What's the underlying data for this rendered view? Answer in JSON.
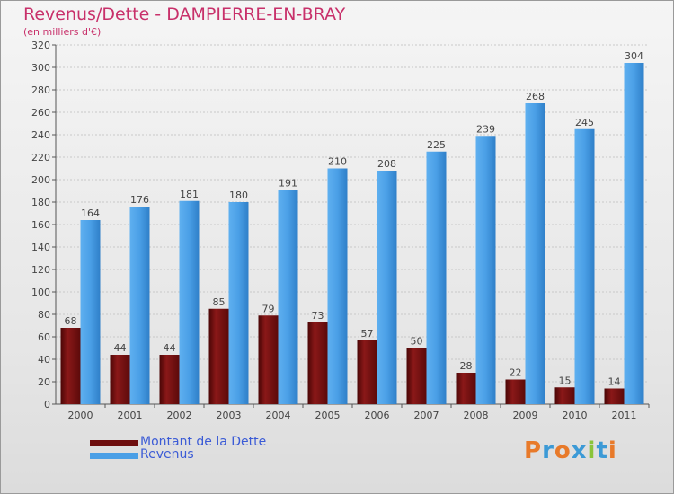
{
  "page": {
    "title": "Revenus/Dette - DAMPIERRE-EN-BRAY",
    "subtitle": "(en milliers d'€)"
  },
  "colors": {
    "title": "#c8306a",
    "debt": "#7a1212",
    "revenue": "#4a9fe6",
    "legend_text": "#3b5bd6",
    "logo": [
      "#e87a2a",
      "#3c9ad6",
      "#e87a2a",
      "#3c9ad6",
      "#8ac43a",
      "#3c9ad6"
    ]
  },
  "legend": {
    "debt_label": "Montant de la Dette",
    "revenue_label": "Revenus"
  },
  "logo": {
    "text": "Proxiti",
    "icon": "proxiti-logo"
  },
  "chart_data": {
    "type": "bar",
    "categories": [
      "2000",
      "2001",
      "2002",
      "2003",
      "2004",
      "2005",
      "2006",
      "2007",
      "2008",
      "2009",
      "2010",
      "2011"
    ],
    "series": [
      {
        "name": "Montant de la Dette",
        "values": [
          68,
          44,
          44,
          85,
          79,
          73,
          57,
          50,
          28,
          22,
          15,
          14
        ]
      },
      {
        "name": "Revenus",
        "values": [
          164,
          176,
          181,
          180,
          191,
          210,
          208,
          225,
          239,
          268,
          245,
          304
        ]
      }
    ],
    "ylim": [
      0,
      320
    ],
    "yticks": [
      0,
      20,
      40,
      60,
      80,
      100,
      120,
      140,
      160,
      180,
      200,
      220,
      240,
      260,
      280,
      300,
      320
    ],
    "grid": true,
    "legend_position": "bottom-left"
  }
}
